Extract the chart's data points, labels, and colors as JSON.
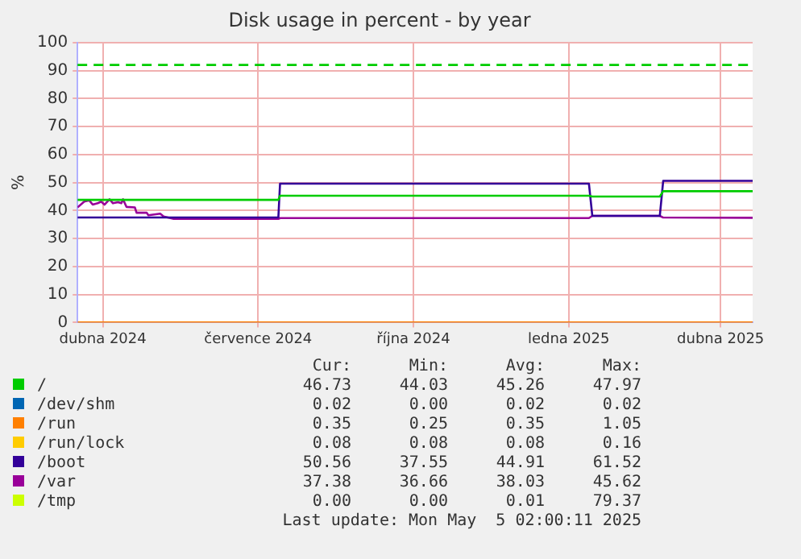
{
  "chart_data": {
    "type": "line",
    "title": "Disk usage in percent - by year",
    "ylabel": "%",
    "x": [
      "2024-03-31",
      "2025-05-05"
    ],
    "xlim": [
      "2024-03-31",
      "2025-05-05"
    ],
    "xticks": [
      {
        "value": "2024-04-15",
        "label": "dubna 2024"
      },
      {
        "value": "2024-07-16",
        "label": "července 2024"
      },
      {
        "value": "2024-10-16",
        "label": "října 2024"
      },
      {
        "value": "2025-01-16",
        "label": "ledna 2025"
      },
      {
        "value": "2025-04-16",
        "label": "dubna 2025"
      }
    ],
    "ylim": [
      0,
      100
    ],
    "yticks": [
      0,
      10,
      20,
      30,
      40,
      50,
      60,
      70,
      80,
      90,
      100
    ],
    "grid": true,
    "legend": "bottom",
    "marker": "none",
    "line_style": "solid",
    "ref_lines": [
      {
        "axis": "y",
        "value": 92,
        "color": "#00cc00",
        "line_style": "dashed"
      }
    ],
    "series": [
      {
        "name": "/",
        "color": "#00cc00",
        "x": [
          "2024-03-31",
          "2024-07-28",
          "2024-07-29",
          "2025-01-28",
          "2025-01-30",
          "2025-03-11",
          "2025-03-13",
          "2025-05-05"
        ],
        "values": [
          43.8,
          43.8,
          45.3,
          45.3,
          45.0,
          45.0,
          46.9,
          46.9
        ]
      },
      {
        "name": "/dev/shm",
        "color": "#0066b3",
        "values": [
          null,
          null
        ]
      },
      {
        "name": "/run",
        "color": "#ff8000",
        "values": [
          0,
          0
        ]
      },
      {
        "name": "/run/lock",
        "color": "#ffcc00",
        "values": [
          null,
          null
        ]
      },
      {
        "name": "/boot",
        "color": "#330099",
        "x": [
          "2024-03-31",
          "2024-07-28",
          "2024-07-29",
          "2025-01-28",
          "2025-01-30",
          "2025-03-11",
          "2025-03-13",
          "2025-05-05"
        ],
        "values": [
          37.5,
          37.5,
          49.6,
          49.6,
          38.1,
          38.1,
          50.6,
          50.6
        ]
      },
      {
        "name": "/var",
        "color": "#990099",
        "x": [
          "2024-03-31",
          "2024-04-04",
          "2024-04-07",
          "2024-04-09",
          "2024-04-12",
          "2024-04-14",
          "2024-04-16",
          "2024-04-19",
          "2024-04-21",
          "2024-04-24",
          "2024-04-26",
          "2024-04-27",
          "2024-04-29",
          "2024-05-04",
          "2024-05-05",
          "2024-05-11",
          "2024-05-12",
          "2024-05-19",
          "2024-05-21",
          "2024-05-27",
          "2024-07-28",
          "2024-07-29",
          "2025-01-28",
          "2025-01-30",
          "2025-03-11",
          "2025-03-13",
          "2025-05-05"
        ],
        "values": [
          41.1,
          43.2,
          43.6,
          42.1,
          42.6,
          43.2,
          42.1,
          44.0,
          42.6,
          43.0,
          42.6,
          44.0,
          41.3,
          41.1,
          39.2,
          39.2,
          38.3,
          38.9,
          37.9,
          37.0,
          37.0,
          37.3,
          37.3,
          38.1,
          38.1,
          37.5,
          37.4
        ]
      },
      {
        "name": "/tmp",
        "color": "#ccff00",
        "values": [
          null,
          null
        ]
      }
    ],
    "annotations": [
      "Cur:",
      "Min:",
      "Avg:",
      "Max:",
      "46.73",
      "44.03",
      "45.26",
      "47.97",
      "0.02",
      "0.00",
      "0.02",
      "0.02",
      "0.35",
      "0.25",
      "0.35",
      "1.05",
      "0.08",
      "0.08",
      "0.08",
      "0.16",
      "50.56",
      "37.55",
      "44.91",
      "61.52",
      "37.38",
      "36.66",
      "38.03",
      "45.62",
      "0.00",
      "0.00",
      "0.01",
      "79.37",
      "Last update: Mon May  5 02:00:11 2025"
    ]
  }
}
